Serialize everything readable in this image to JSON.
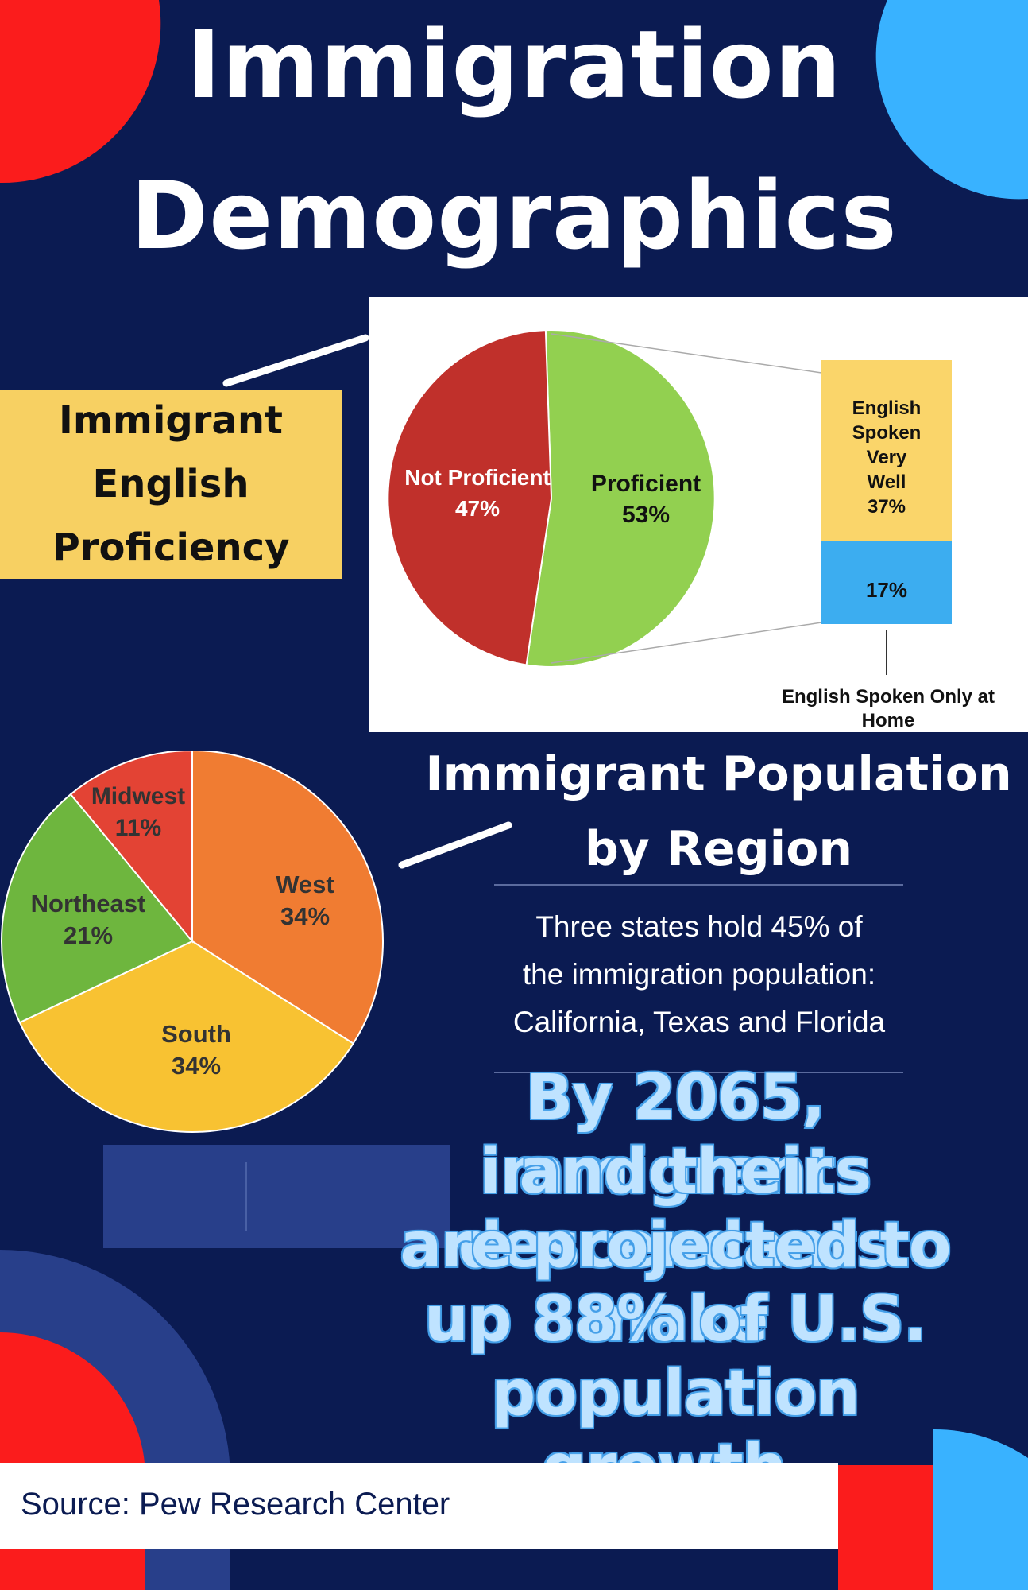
{
  "title": {
    "line1": "Immigration",
    "line2": "Demographics"
  },
  "proficiency": {
    "label_lines": [
      "Immigrant",
      "English",
      "Proficiency"
    ]
  },
  "region": {
    "title_line1": "Immigrant Population",
    "title_line2": "by Region",
    "description_lines": [
      "Three states hold 45% of",
      "the immigration population:",
      "California, Texas and Florida"
    ]
  },
  "projection_lines": [
    "By 2065, immigrants",
    "and their descendants",
    "are projected to make",
    "up 88% of U.S.",
    "population growth."
  ],
  "source": "Source: Pew Research Center",
  "colors": {
    "background": "#0b1b52",
    "accent_red": "#fb1c1c",
    "accent_blue": "#39b2ff",
    "label_yellow": "#f7d062",
    "block_blue": "#283f8a"
  },
  "chart_data": [
    {
      "type": "pie",
      "categories": [
        "Not Proficient",
        "Proficient"
      ],
      "values": [
        47,
        53
      ],
      "labels": [
        "Not Proficient 47%",
        "Proficient 53%"
      ],
      "colors": [
        "#c0302b",
        "#92d050"
      ],
      "breakdown": {
        "type": "bar",
        "stacked": true,
        "categories": [
          "English Spoken Very Well",
          "English Spoken Only at Home"
        ],
        "values": [
          37,
          17
        ],
        "labels": [
          "English Spoken Very Well 37%",
          "17%"
        ],
        "annotation": "English Spoken Only at Home",
        "colors": [
          "#fad56a",
          "#3cadf0"
        ]
      }
    },
    {
      "type": "pie",
      "categories": [
        "West",
        "South",
        "Northeast",
        "Midwest"
      ],
      "values": [
        34,
        34,
        21,
        11
      ],
      "labels": [
        "West 34%",
        "South 34%",
        "Northeast 21%",
        "Midwest 11%"
      ],
      "colors": [
        "#f07c32",
        "#f8c232",
        "#6eb63e",
        "#e34334"
      ]
    }
  ]
}
